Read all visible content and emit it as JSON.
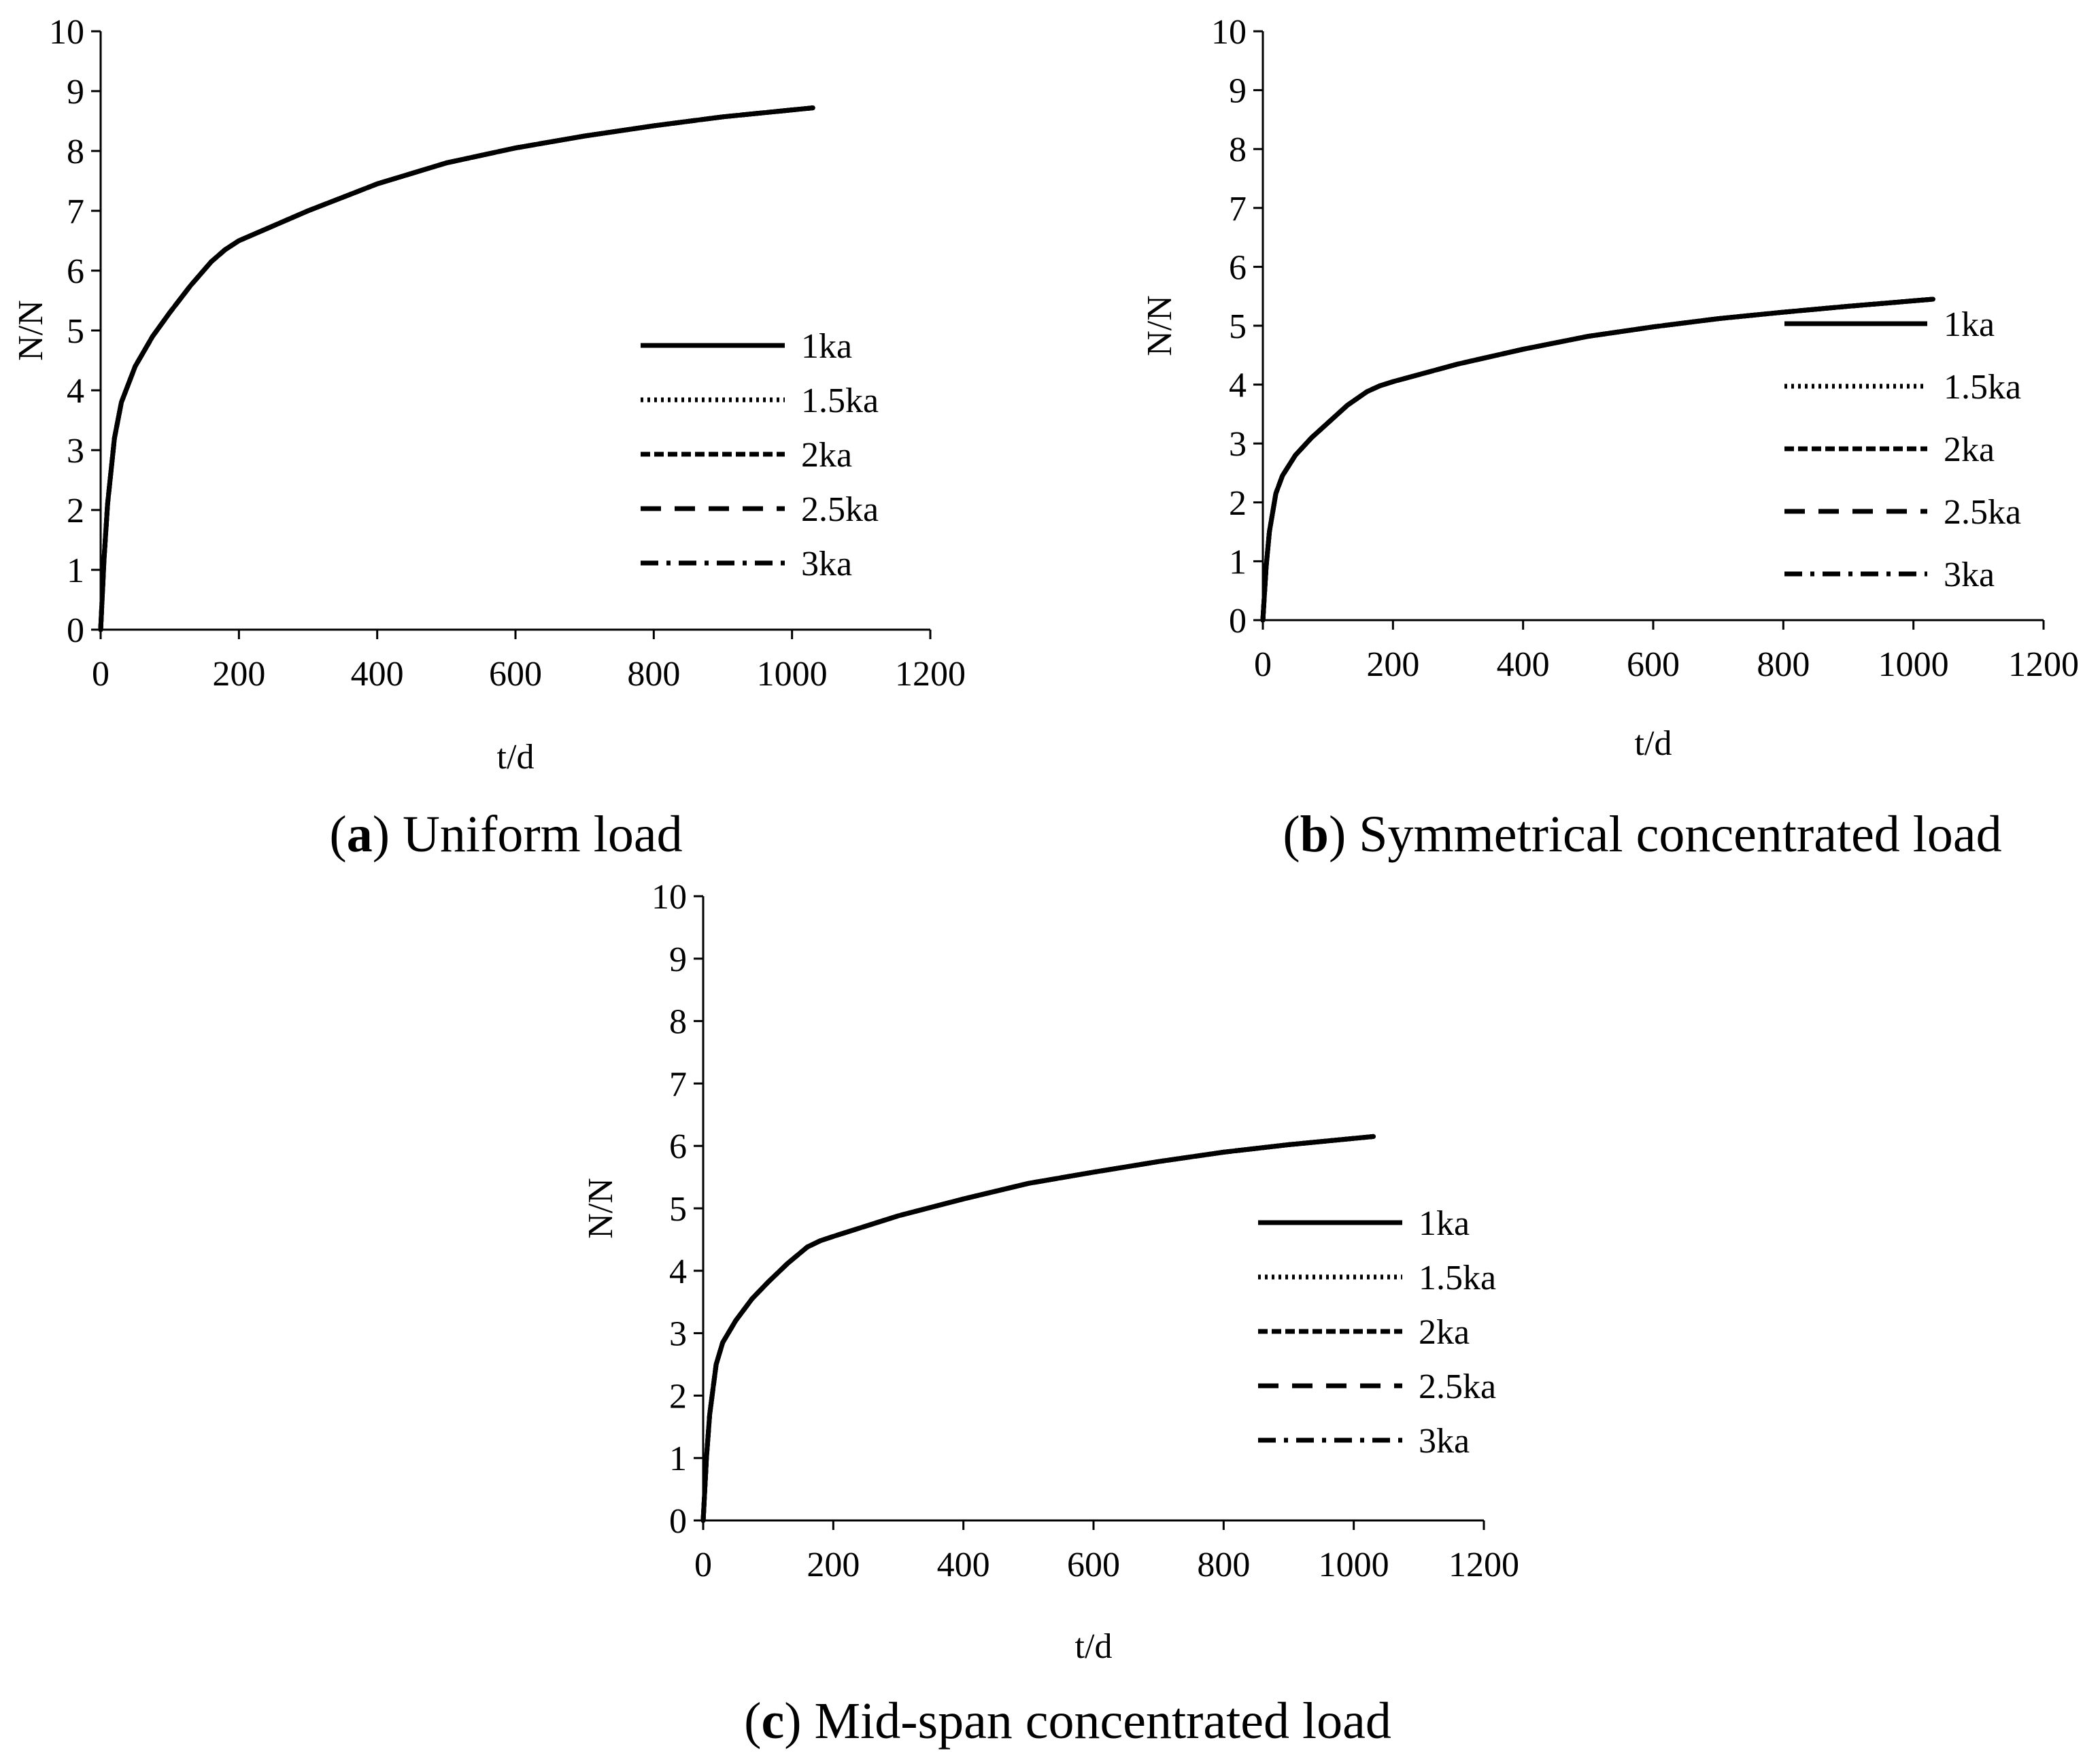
{
  "chart_data": [
    {
      "id": "a",
      "type": "line",
      "caption_letter": "a",
      "caption_text": "Uniform load",
      "xlabel": "t/d",
      "ylabel": "N/N",
      "xlim": [
        0,
        1200
      ],
      "ylim": [
        0,
        10
      ],
      "xticks": [
        0,
        200,
        400,
        600,
        800,
        1000,
        1200
      ],
      "yticks": [
        0,
        1,
        2,
        3,
        4,
        5,
        6,
        7,
        8,
        9,
        10
      ],
      "legend_position": "center-right",
      "series": [
        {
          "name": "1ka",
          "style": "solid",
          "x": [
            0,
            5,
            10,
            20,
            30,
            50,
            75,
            100,
            130,
            160,
            180,
            200,
            300,
            400,
            500,
            600,
            700,
            800,
            900,
            1030
          ],
          "y": [
            0,
            1.2,
            2.1,
            3.2,
            3.8,
            4.4,
            4.9,
            5.3,
            5.75,
            6.15,
            6.35,
            6.5,
            7.0,
            7.45,
            7.8,
            8.05,
            8.25,
            8.42,
            8.57,
            8.72
          ]
        },
        {
          "name": "1.5ka",
          "style": "dotted",
          "x": [
            0,
            5,
            10,
            20,
            30,
            50,
            75,
            100,
            130,
            160,
            180,
            200,
            300,
            400,
            500,
            600,
            700,
            800,
            900,
            1030
          ],
          "y": [
            0,
            1.2,
            2.1,
            3.2,
            3.8,
            4.4,
            4.9,
            5.3,
            5.75,
            6.15,
            6.35,
            6.5,
            7.0,
            7.45,
            7.8,
            8.05,
            8.25,
            8.42,
            8.57,
            8.72
          ]
        },
        {
          "name": "2ka",
          "style": "short-dash",
          "x": [
            0,
            5,
            10,
            20,
            30,
            50,
            75,
            100,
            130,
            160,
            180,
            200,
            300,
            400,
            500,
            600,
            700,
            800,
            900,
            1030
          ],
          "y": [
            0,
            1.2,
            2.1,
            3.2,
            3.8,
            4.4,
            4.9,
            5.3,
            5.75,
            6.15,
            6.35,
            6.5,
            7.0,
            7.45,
            7.8,
            8.05,
            8.25,
            8.42,
            8.57,
            8.72
          ]
        },
        {
          "name": "2.5ka",
          "style": "long-dash",
          "x": [
            0,
            5,
            10,
            20,
            30,
            50,
            75,
            100,
            130,
            160,
            180,
            200,
            300,
            400,
            500,
            600,
            700,
            800,
            900,
            1030
          ],
          "y": [
            0,
            1.2,
            2.1,
            3.2,
            3.8,
            4.4,
            4.9,
            5.3,
            5.75,
            6.15,
            6.35,
            6.5,
            7.0,
            7.45,
            7.8,
            8.05,
            8.25,
            8.42,
            8.57,
            8.72
          ]
        },
        {
          "name": "3ka",
          "style": "dash-dot",
          "x": [
            0,
            5,
            10,
            20,
            30,
            50,
            75,
            100,
            130,
            160,
            180,
            200,
            300,
            400,
            500,
            600,
            700,
            800,
            900,
            1030
          ],
          "y": [
            0,
            1.2,
            2.1,
            3.2,
            3.8,
            4.4,
            4.9,
            5.3,
            5.75,
            6.15,
            6.35,
            6.5,
            7.0,
            7.45,
            7.8,
            8.05,
            8.25,
            8.42,
            8.57,
            8.72
          ]
        }
      ]
    },
    {
      "id": "b",
      "type": "line",
      "caption_letter": "b",
      "caption_text": "Symmetrical concentrated load",
      "xlabel": "t/d",
      "ylabel": "N/N",
      "xlim": [
        0,
        1200
      ],
      "ylim": [
        0,
        10
      ],
      "xticks": [
        0,
        200,
        400,
        600,
        800,
        1000,
        1200
      ],
      "yticks": [
        0,
        1,
        2,
        3,
        4,
        5,
        6,
        7,
        8,
        9,
        10
      ],
      "legend_position": "center-right",
      "series": [
        {
          "name": "1ka",
          "style": "solid",
          "x": [
            0,
            5,
            10,
            20,
            30,
            50,
            75,
            100,
            130,
            160,
            180,
            200,
            300,
            400,
            500,
            600,
            700,
            800,
            900,
            1030
          ],
          "y": [
            0,
            0.9,
            1.5,
            2.15,
            2.45,
            2.8,
            3.1,
            3.35,
            3.65,
            3.88,
            3.98,
            4.05,
            4.35,
            4.6,
            4.82,
            4.98,
            5.12,
            5.23,
            5.33,
            5.45
          ]
        },
        {
          "name": "1.5ka",
          "style": "dotted",
          "x": [
            0,
            5,
            10,
            20,
            30,
            50,
            75,
            100,
            130,
            160,
            180,
            200,
            300,
            400,
            500,
            600,
            700,
            800,
            900,
            1030
          ],
          "y": [
            0,
            0.9,
            1.5,
            2.15,
            2.45,
            2.8,
            3.1,
            3.35,
            3.65,
            3.88,
            3.98,
            4.05,
            4.35,
            4.6,
            4.82,
            4.98,
            5.12,
            5.23,
            5.33,
            5.45
          ]
        },
        {
          "name": "2ka",
          "style": "short-dash",
          "x": [
            0,
            5,
            10,
            20,
            30,
            50,
            75,
            100,
            130,
            160,
            180,
            200,
            300,
            400,
            500,
            600,
            700,
            800,
            900,
            1030
          ],
          "y": [
            0,
            0.9,
            1.5,
            2.15,
            2.45,
            2.8,
            3.1,
            3.35,
            3.65,
            3.88,
            3.98,
            4.05,
            4.35,
            4.6,
            4.82,
            4.98,
            5.12,
            5.23,
            5.33,
            5.45
          ]
        },
        {
          "name": "2.5ka",
          "style": "long-dash",
          "x": [
            0,
            5,
            10,
            20,
            30,
            50,
            75,
            100,
            130,
            160,
            180,
            200,
            300,
            400,
            500,
            600,
            700,
            800,
            900,
            1030
          ],
          "y": [
            0,
            0.9,
            1.5,
            2.15,
            2.45,
            2.8,
            3.1,
            3.35,
            3.65,
            3.88,
            3.98,
            4.05,
            4.35,
            4.6,
            4.82,
            4.98,
            5.12,
            5.23,
            5.33,
            5.45
          ]
        },
        {
          "name": "3ka",
          "style": "dash-dot",
          "x": [
            0,
            5,
            10,
            20,
            30,
            50,
            75,
            100,
            130,
            160,
            180,
            200,
            300,
            400,
            500,
            600,
            700,
            800,
            900,
            1030
          ],
          "y": [
            0,
            0.9,
            1.5,
            2.15,
            2.45,
            2.8,
            3.1,
            3.35,
            3.65,
            3.88,
            3.98,
            4.05,
            4.35,
            4.6,
            4.82,
            4.98,
            5.12,
            5.23,
            5.33,
            5.45
          ]
        }
      ]
    },
    {
      "id": "c",
      "type": "line",
      "caption_letter": "c",
      "caption_text": "Mid-span concentrated load",
      "xlabel": "t/d",
      "ylabel": "N/N",
      "xlim": [
        0,
        1200
      ],
      "ylim": [
        0,
        10
      ],
      "xticks": [
        0,
        200,
        400,
        600,
        800,
        1000,
        1200
      ],
      "yticks": [
        0,
        1,
        2,
        3,
        4,
        5,
        6,
        7,
        8,
        9,
        10
      ],
      "legend_position": "center-right",
      "series": [
        {
          "name": "1ka",
          "style": "solid",
          "x": [
            0,
            5,
            10,
            20,
            30,
            50,
            75,
            100,
            130,
            160,
            180,
            200,
            300,
            400,
            500,
            600,
            700,
            800,
            900,
            1030
          ],
          "y": [
            0,
            1.0,
            1.7,
            2.5,
            2.85,
            3.2,
            3.55,
            3.82,
            4.12,
            4.38,
            4.48,
            4.55,
            4.88,
            5.15,
            5.4,
            5.58,
            5.75,
            5.9,
            6.02,
            6.15
          ]
        },
        {
          "name": "1.5ka",
          "style": "dotted",
          "x": [
            0,
            5,
            10,
            20,
            30,
            50,
            75,
            100,
            130,
            160,
            180,
            200,
            300,
            400,
            500,
            600,
            700,
            800,
            900,
            1030
          ],
          "y": [
            0,
            1.0,
            1.7,
            2.5,
            2.85,
            3.2,
            3.55,
            3.82,
            4.12,
            4.38,
            4.48,
            4.55,
            4.88,
            5.15,
            5.4,
            5.58,
            5.75,
            5.9,
            6.02,
            6.15
          ]
        },
        {
          "name": "2ka",
          "style": "short-dash",
          "x": [
            0,
            5,
            10,
            20,
            30,
            50,
            75,
            100,
            130,
            160,
            180,
            200,
            300,
            400,
            500,
            600,
            700,
            800,
            900,
            1030
          ],
          "y": [
            0,
            1.0,
            1.7,
            2.5,
            2.85,
            3.2,
            3.55,
            3.82,
            4.12,
            4.38,
            4.48,
            4.55,
            4.88,
            5.15,
            5.4,
            5.58,
            5.75,
            5.9,
            6.02,
            6.15
          ]
        },
        {
          "name": "2.5ka",
          "style": "long-dash",
          "x": [
            0,
            5,
            10,
            20,
            30,
            50,
            75,
            100,
            130,
            160,
            180,
            200,
            300,
            400,
            500,
            600,
            700,
            800,
            900,
            1030
          ],
          "y": [
            0,
            1.0,
            1.7,
            2.5,
            2.85,
            3.2,
            3.55,
            3.82,
            4.12,
            4.38,
            4.48,
            4.55,
            4.88,
            5.15,
            5.4,
            5.58,
            5.75,
            5.9,
            6.02,
            6.15
          ]
        },
        {
          "name": "3ka",
          "style": "dash-dot",
          "x": [
            0,
            5,
            10,
            20,
            30,
            50,
            75,
            100,
            130,
            160,
            180,
            200,
            300,
            400,
            500,
            600,
            700,
            800,
            900,
            1030
          ],
          "y": [
            0,
            1.0,
            1.7,
            2.5,
            2.85,
            3.2,
            3.55,
            3.82,
            4.12,
            4.38,
            4.48,
            4.55,
            4.88,
            5.15,
            5.4,
            5.58,
            5.75,
            5.9,
            6.02,
            6.15
          ]
        }
      ]
    }
  ],
  "colors": {
    "line": "#000000",
    "axis": "#000000",
    "background": "#ffffff"
  }
}
